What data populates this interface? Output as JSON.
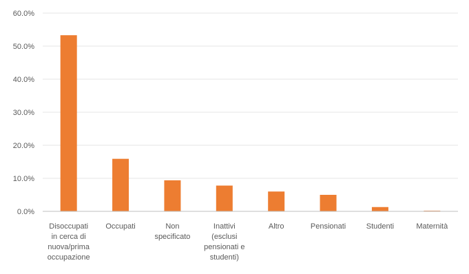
{
  "chart_data": {
    "type": "bar",
    "categories": [
      [
        "Disoccupati",
        "in cerca di",
        "nuova/prima",
        "occupazione"
      ],
      [
        "Occupati"
      ],
      [
        "Non",
        "specificato"
      ],
      [
        "Inattivi",
        "(esclusi",
        "pensionati e",
        "studenti)"
      ],
      [
        "Altro"
      ],
      [
        "Pensionati"
      ],
      [
        "Studenti"
      ],
      [
        "Maternità"
      ]
    ],
    "values": [
      53.3,
      15.9,
      9.4,
      7.8,
      6.0,
      5.0,
      1.3,
      0.2
    ],
    "ylim": [
      0,
      60
    ],
    "yticks": [
      "0.0%",
      "10.0%",
      "20.0%",
      "30.0%",
      "40.0%",
      "50.0%",
      "60.0%"
    ],
    "grid": true,
    "colors": {
      "bar": "#ED7D31",
      "grid": "#E6E6E6",
      "axis": "#BFBFBF",
      "text": "#595959"
    }
  }
}
